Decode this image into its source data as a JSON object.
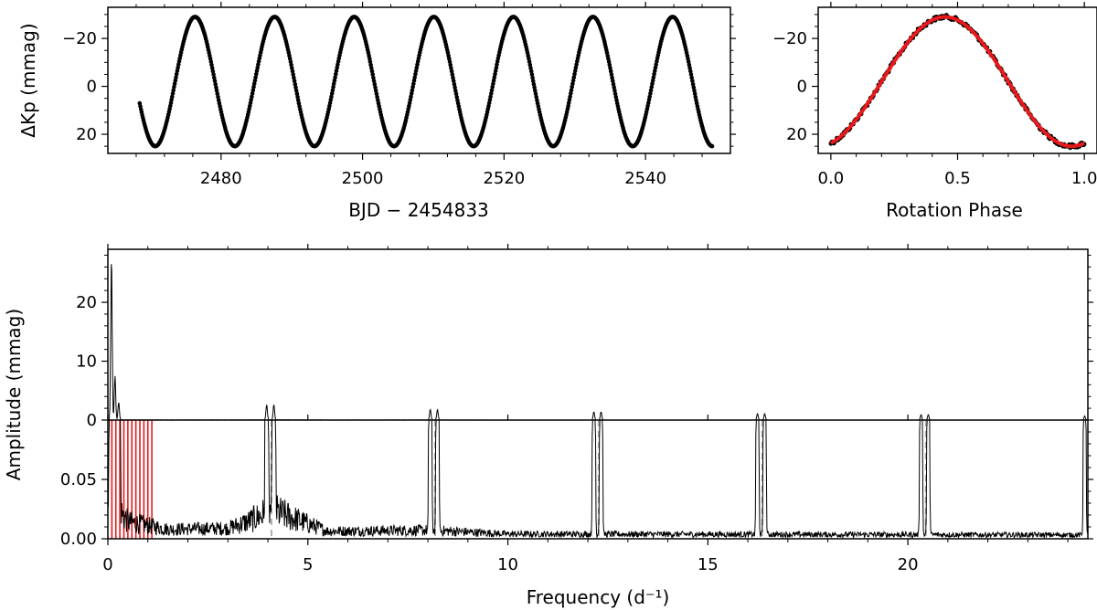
{
  "chart_data": [
    {
      "type": "scatter",
      "panel": "light-curve",
      "xlabel": "BJD − 2454833",
      "ylabel": "ΔKp (mmag)",
      "xlim": [
        2464,
        2552
      ],
      "ylim": [
        28,
        -33
      ],
      "y_inverted": true,
      "xticks": [
        2480,
        2500,
        2520,
        2540
      ],
      "yticks": [
        -20,
        0,
        20
      ],
      "ytick_labels": [
        "−20",
        "0",
        "20"
      ],
      "series": [
        {
          "color": "#000000",
          "time_start": 2468.5,
          "time_end": 2549.5,
          "period_days": 11.25,
          "amplitude_mmag": 27,
          "mean_mmag": -2,
          "first_minimum_time": 2470.7
        }
      ]
    },
    {
      "type": "scatter",
      "panel": "phase-folded",
      "xlabel": "Rotation Phase",
      "ylabel": "",
      "xlim": [
        -0.05,
        1.05
      ],
      "ylim": [
        28,
        -33
      ],
      "y_inverted": true,
      "xticks": [
        0.0,
        0.5,
        1.0
      ],
      "xtick_labels": [
        "0.0",
        "0.5",
        "1.0"
      ],
      "yticks": [
        -20,
        0,
        20
      ],
      "ytick_labels": [
        "−20",
        "0",
        "20"
      ],
      "series": [
        {
          "color": "#000000",
          "model_color": "#e8191b",
          "phase_of_maximum": 0.45,
          "value_at_maximum": -29,
          "value_at_minimum": 25
        }
      ]
    },
    {
      "type": "line",
      "panel": "amplitude-spectrum",
      "xlabel": "Frequency (d⁻¹)",
      "ylabel": "Amplitude (mmag)",
      "xlim": [
        0,
        24.5
      ],
      "xticks": [
        0,
        5,
        10,
        15,
        20
      ],
      "upper": {
        "ylim": [
          0,
          29
        ],
        "yticks": [
          0,
          10,
          20
        ],
        "peaks": [
          {
            "x": 0.089,
            "y": 27.5
          },
          {
            "x": 0.178,
            "y": 7.5
          },
          {
            "x": 0.27,
            "y": 3.0
          },
          {
            "x": 3.97,
            "y": 2.6
          },
          {
            "x": 4.15,
            "y": 2.6
          },
          {
            "x": 8.06,
            "y": 1.8
          },
          {
            "x": 8.24,
            "y": 1.8
          },
          {
            "x": 12.15,
            "y": 1.4
          },
          {
            "x": 12.33,
            "y": 1.4
          },
          {
            "x": 16.24,
            "y": 1.1
          },
          {
            "x": 16.42,
            "y": 1.1
          },
          {
            "x": 20.33,
            "y": 0.9
          },
          {
            "x": 20.51,
            "y": 0.9
          },
          {
            "x": 24.42,
            "y": 0.7
          }
        ]
      },
      "lower": {
        "ylim": [
          0,
          0.1
        ],
        "yticks": [
          0,
          0.05
        ],
        "ytick_labels": [
          "0.00",
          "0.05"
        ],
        "noise_level": [
          {
            "x": 0,
            "y": 0.045
          },
          {
            "x": 0.5,
            "y": 0.018
          },
          {
            "x": 1.5,
            "y": 0.01
          },
          {
            "x": 3.0,
            "y": 0.011
          },
          {
            "x": 3.5,
            "y": 0.018
          },
          {
            "x": 4.1,
            "y": 0.03
          },
          {
            "x": 5.5,
            "y": 0.008
          },
          {
            "x": 8.1,
            "y": 0.009
          },
          {
            "x": 10,
            "y": 0.005
          },
          {
            "x": 24.5,
            "y": 0.004
          }
        ],
        "harmonic_markers": [
          4.09,
          8.18,
          12.27,
          16.36,
          20.45
        ],
        "harmonic_marker_color": "#b0b0b0",
        "red_markers": [
          0.1,
          0.2,
          0.3,
          0.4,
          0.5,
          0.6,
          0.7,
          0.8,
          0.9,
          1.0,
          1.1
        ],
        "red_marker_color": "#e8191b"
      }
    }
  ]
}
